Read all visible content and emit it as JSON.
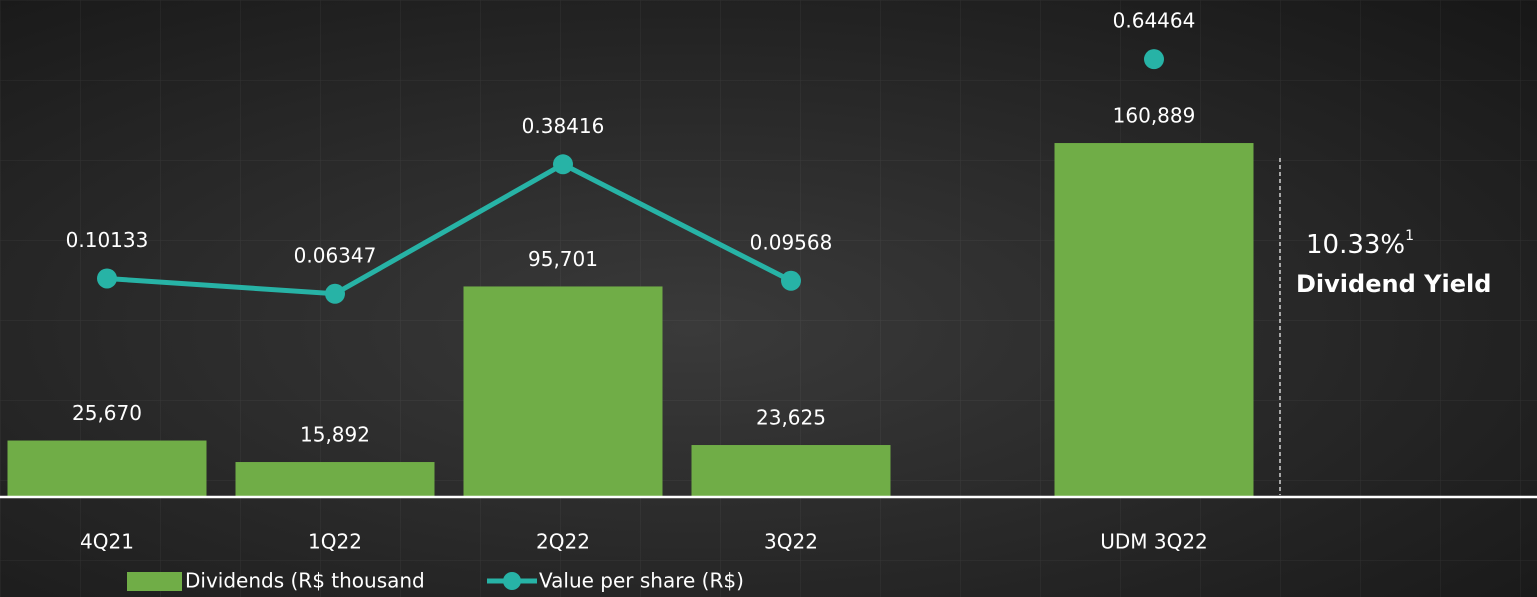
{
  "chart_data": {
    "type": "bar",
    "categories": [
      "4Q21",
      "1Q22",
      "2Q22",
      "3Q22",
      "UDM 3Q22"
    ],
    "series": [
      {
        "name": "Dividends (R$ thousand",
        "type": "bar",
        "color": "#70ad47",
        "values": [
          25670,
          15892,
          95701,
          23625,
          160889
        ],
        "value_labels": [
          "25,670",
          "15,892",
          "95,701",
          "23,625",
          "160,889"
        ]
      },
      {
        "name": "Value per share (R$)",
        "type": "line",
        "axis": "y2",
        "color": "#27b3a6",
        "values": [
          0.10133,
          0.06347,
          0.38416,
          0.09568,
          0.64464
        ]
      }
    ],
    "ylim": [
      0,
      200000
    ],
    "y2lim": [
      -0.44,
      0.65
    ],
    "annotation": {
      "value": "10.33%",
      "superscript": "1",
      "label": "Dividend Yield"
    }
  }
}
